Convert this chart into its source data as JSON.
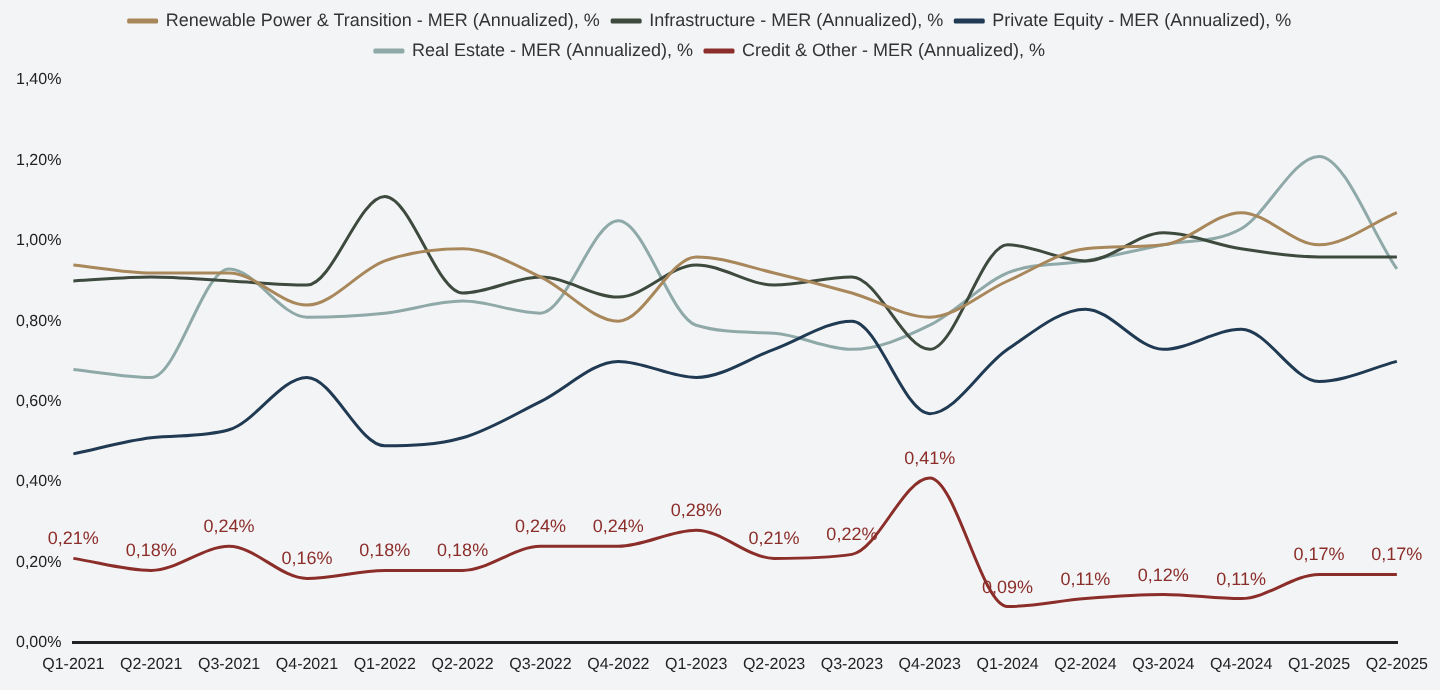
{
  "chart_data": {
    "type": "line",
    "categories": [
      "Q1-2021",
      "Q2-2021",
      "Q3-2021",
      "Q4-2021",
      "Q1-2022",
      "Q2-2022",
      "Q3-2022",
      "Q4-2022",
      "Q1-2023",
      "Q2-2023",
      "Q3-2023",
      "Q4-2023",
      "Q1-2024",
      "Q2-2024",
      "Q3-2024",
      "Q4-2024",
      "Q1-2025",
      "Q2-2025"
    ],
    "series": [
      {
        "name": "Renewable Power & Transition - MER (Annualized), %",
        "color": "#a8875a",
        "values": [
          0.94,
          0.92,
          0.92,
          0.84,
          0.95,
          0.98,
          0.91,
          0.8,
          0.96,
          0.92,
          0.87,
          0.81,
          0.9,
          0.98,
          0.99,
          1.07,
          0.99,
          1.07
        ]
      },
      {
        "name": "Infrastructure - MER (Annualized), %",
        "color": "#3d4a3d",
        "values": [
          0.9,
          0.91,
          0.9,
          0.89,
          1.11,
          0.87,
          0.91,
          0.86,
          0.94,
          0.89,
          0.91,
          0.73,
          0.99,
          0.95,
          1.02,
          0.98,
          0.96,
          0.96
        ]
      },
      {
        "name": "Private Equity - MER (Annualized), %",
        "color": "#1f3a52",
        "values": [
          0.47,
          0.51,
          0.53,
          0.66,
          0.49,
          0.51,
          0.6,
          0.7,
          0.66,
          0.73,
          0.8,
          0.57,
          0.73,
          0.83,
          0.73,
          0.78,
          0.65,
          0.7
        ]
      },
      {
        "name": "Real Estate - MER (Annualized), %",
        "color": "#8fa9a8",
        "values": [
          0.68,
          0.66,
          0.93,
          0.81,
          0.82,
          0.85,
          0.82,
          1.05,
          0.79,
          0.77,
          0.73,
          0.79,
          0.92,
          0.95,
          0.99,
          1.03,
          1.21,
          0.93
        ]
      },
      {
        "name": "Credit & Other - MER (Annualized), %",
        "color": "#8b2e2a",
        "values": [
          0.21,
          0.18,
          0.24,
          0.16,
          0.18,
          0.18,
          0.24,
          0.24,
          0.28,
          0.21,
          0.22,
          0.41,
          0.09,
          0.11,
          0.12,
          0.11,
          0.17,
          0.17
        ],
        "value_labels": [
          "0,21%",
          "0,18%",
          "0,24%",
          "0,16%",
          "0,18%",
          "0,18%",
          "0,24%",
          "0,24%",
          "0,28%",
          "0,21%",
          "0,22%",
          "0,41%",
          "0,09%",
          "0,11%",
          "0,12%",
          "0,11%",
          "0,17%",
          "0,17%"
        ]
      }
    ],
    "ylim": [
      0,
      1.4
    ],
    "yticks": [
      {
        "value": 0,
        "label": "0,00%"
      },
      {
        "value": 0.2,
        "label": "0,20%"
      },
      {
        "value": 0.4,
        "label": "0,40%"
      },
      {
        "value": 0.6,
        "label": "0,60%"
      },
      {
        "value": 0.8,
        "label": "0,80%"
      },
      {
        "value": 1.0,
        "label": "1,00%"
      },
      {
        "value": 1.2,
        "label": "1,20%"
      },
      {
        "value": 1.4,
        "label": "1,40%"
      }
    ],
    "grid": false,
    "legend": "top",
    "marker": "none",
    "line_style": "solid"
  }
}
